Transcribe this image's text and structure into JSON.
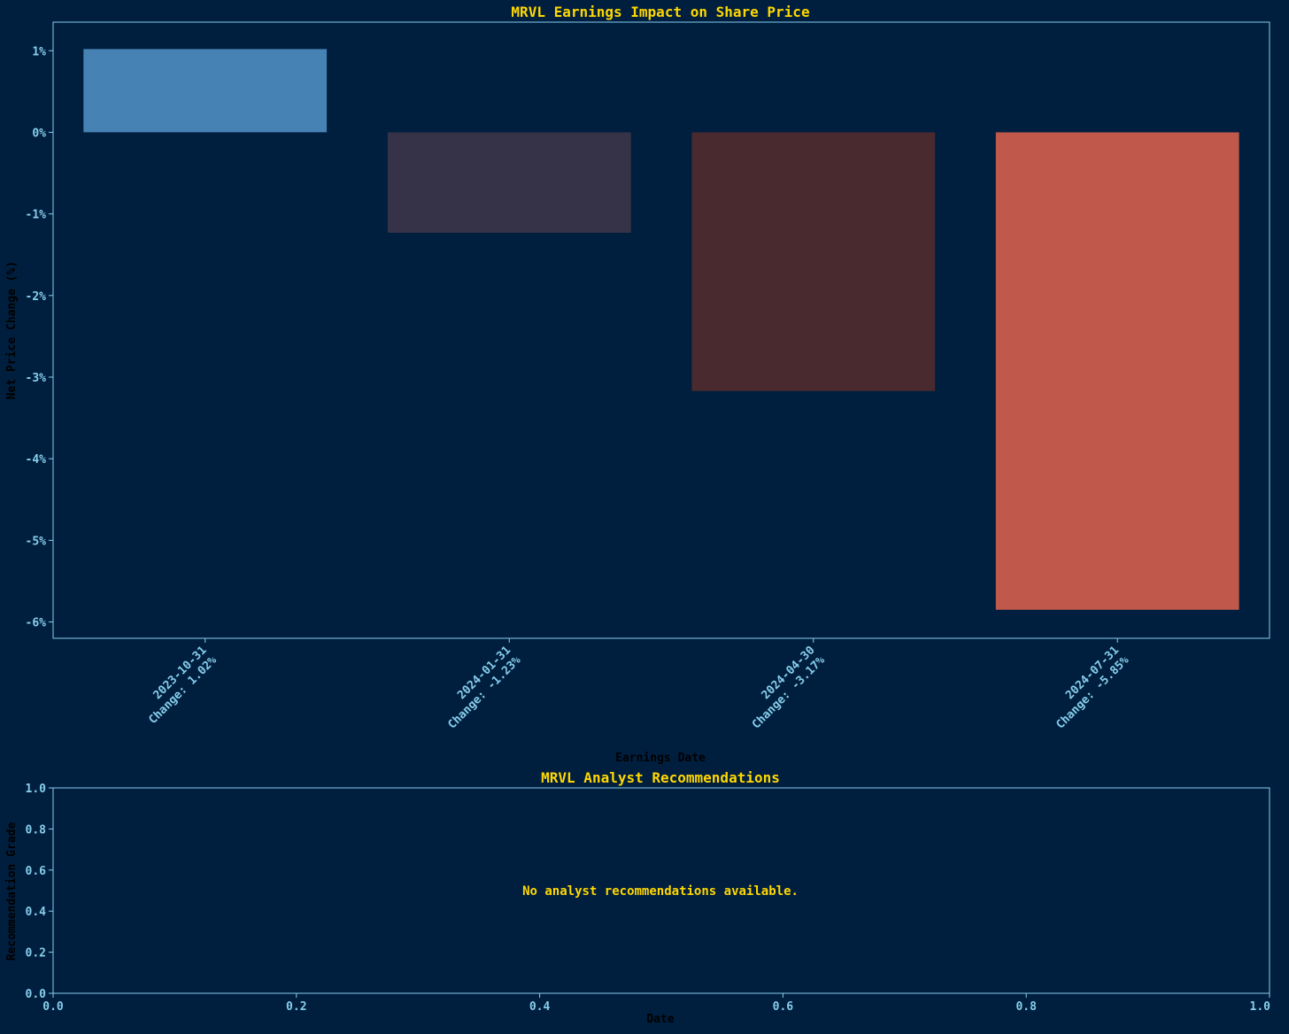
{
  "colors": {
    "background": "#001f3f",
    "title": "#ffd700",
    "tick_label": "#87ceeb",
    "axis_label": "#000000",
    "spine": "#87ceeb",
    "message": "#ffd700"
  },
  "chart_data": [
    {
      "type": "bar",
      "title": "MRVL Earnings Impact on Share Price",
      "xlabel": "Earnings Date",
      "ylabel": "Net Price Change (%)",
      "categories": [
        "2023-10-31",
        "2024-01-31",
        "2024-04-30",
        "2024-07-31"
      ],
      "tick_labels": [
        [
          "2023-10-31",
          "Change: 1.02%"
        ],
        [
          "2024-01-31",
          "Change: -1.23%"
        ],
        [
          "2024-04-30",
          "Change: -3.17%"
        ],
        [
          "2024-07-31",
          "Change: -5.85%"
        ]
      ],
      "values": [
        1.02,
        -1.23,
        -3.17,
        -5.85
      ],
      "bar_colors": [
        "#4682b4",
        "#363348",
        "#482a2f",
        "#c0594b"
      ],
      "ylim": [
        -6.2,
        1.35
      ],
      "yticks": [
        1,
        0,
        -1,
        -2,
        -3,
        -4,
        -5,
        -6
      ],
      "ytick_labels": [
        "1%",
        "0%",
        "-1%",
        "-2%",
        "-3%",
        "-4%",
        "-5%",
        "-6%"
      ],
      "grid": false,
      "legend": null
    },
    {
      "type": "scatter",
      "title": "MRVL Analyst Recommendations",
      "xlabel": "Date",
      "ylabel": "Recommendation Grade",
      "message": "No analyst recommendations available.",
      "xlim": [
        0,
        1
      ],
      "ylim": [
        0,
        1
      ],
      "xticks": [
        0.0,
        0.2,
        0.4,
        0.6,
        0.8,
        1.0
      ],
      "xtick_labels": [
        "0.0",
        "0.2",
        "0.4",
        "0.6",
        "0.8",
        "1.0"
      ],
      "yticks": [
        0.0,
        0.2,
        0.4,
        0.6,
        0.8,
        1.0
      ],
      "ytick_labels": [
        "0.0",
        "0.2",
        "0.4",
        "0.6",
        "0.8",
        "1.0"
      ],
      "grid": false,
      "legend": null
    }
  ]
}
